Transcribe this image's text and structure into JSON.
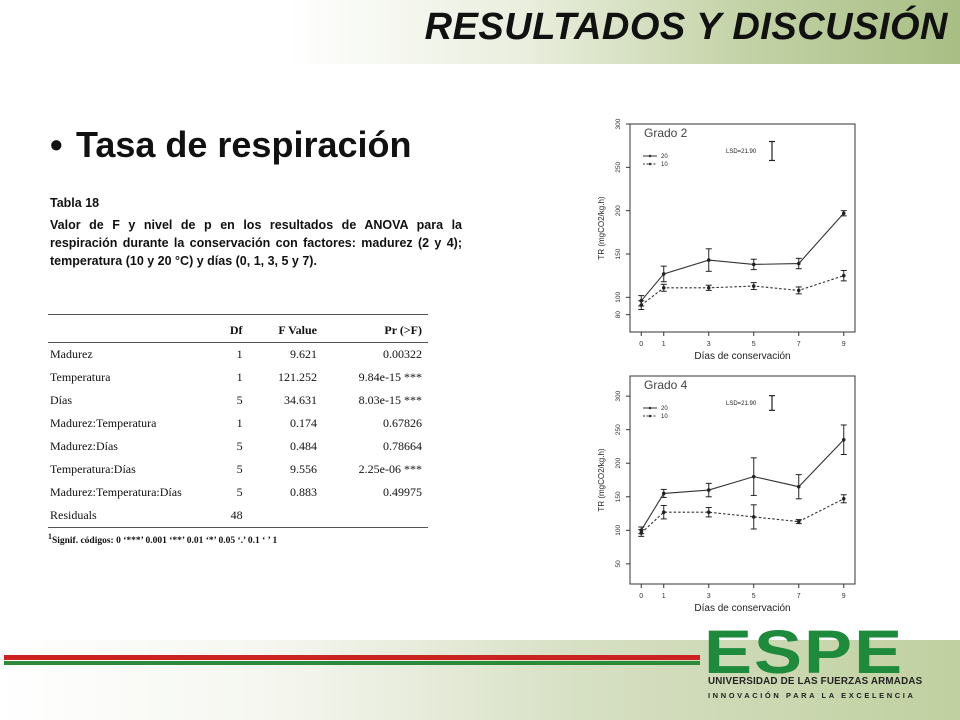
{
  "slide": {
    "title": "RESULTADOS Y DISCUSIÓN",
    "bullet_glyph": "•",
    "heading": "Tasa de respiración"
  },
  "caption": {
    "table_label": "Tabla 18",
    "text": "Valor de F y nivel de p en los resultados de ANOVA para la respiración durante la conservación con factores: madurez (2 y 4); temperatura (10 y 20 °C) y días (0, 1, 3, 5 y 7)."
  },
  "anova_table": {
    "headers": [
      "",
      "Df",
      "F Value",
      "Pr (>F)"
    ],
    "rows": [
      [
        "Madurez",
        "1",
        "9.621",
        "0.00322"
      ],
      [
        "Temperatura",
        "1",
        "121.252",
        "9.84e-15 ***"
      ],
      [
        "Días",
        "5",
        "34.631",
        "8.03e-15 ***"
      ],
      [
        "Madurez:Temperatura",
        "1",
        "0.174",
        "0.67826"
      ],
      [
        "Madurez:Días",
        "5",
        "0.484",
        "0.78664"
      ],
      [
        "Temperatura:Días",
        "5",
        "9.556",
        "2.25e-06 ***"
      ],
      [
        "Madurez:Temperatura:Días",
        "5",
        "0.883",
        "0.49975"
      ],
      [
        "Residuals",
        "48",
        "",
        ""
      ]
    ],
    "footnote_sup": "1",
    "footnote": "Signif. códigos: 0 ‘***’ 0.001 ‘**’ 0.01 ‘*’ 0.05 ‘.’ 0.1 ‘ ’ 1"
  },
  "chart_data": [
    {
      "type": "line",
      "label": "Grado 2",
      "xlabel": "Días de conservación",
      "ylabel": "TR (mgCO2/kg.h)",
      "x": [
        0,
        1,
        3,
        5,
        7,
        9
      ],
      "ylim": [
        60,
        300
      ],
      "yticks": [
        80,
        100,
        150,
        200,
        250,
        300
      ],
      "xticks": [
        0,
        1,
        3,
        5,
        7,
        9
      ],
      "lsd_label": "LSD=21.90",
      "lsd_value": 21.9,
      "legend": [
        "20",
        "10"
      ],
      "series": [
        {
          "name": "20",
          "values": [
            96,
            127,
            143,
            138,
            139,
            197
          ],
          "errors": [
            6,
            9,
            13,
            6,
            6,
            3
          ]
        },
        {
          "name": "10",
          "values": [
            91,
            111,
            111,
            113,
            108,
            125
          ],
          "errors": [
            5,
            4,
            3,
            4,
            4,
            6
          ]
        }
      ]
    },
    {
      "type": "line",
      "label": "Grado 4",
      "xlabel": "Días de conservación",
      "ylabel": "TR (mgCO2/kg.h)",
      "x": [
        0,
        1,
        3,
        5,
        7,
        9
      ],
      "ylim": [
        20,
        330
      ],
      "yticks": [
        50,
        100,
        150,
        200,
        250,
        300
      ],
      "xticks": [
        0,
        1,
        3,
        5,
        7,
        9
      ],
      "lsd_label": "LSD=21.90",
      "lsd_value": 21.9,
      "legend": [
        "20",
        "10"
      ],
      "series": [
        {
          "name": "20",
          "values": [
            100,
            155,
            160,
            180,
            165,
            235
          ],
          "errors": [
            5,
            6,
            10,
            28,
            18,
            22
          ]
        },
        {
          "name": "10",
          "values": [
            96,
            127,
            127,
            120,
            113,
            147
          ],
          "errors": [
            5,
            10,
            7,
            18,
            3,
            6
          ]
        }
      ]
    }
  ],
  "footer": {
    "logo_text": "ESPE",
    "university": "UNIVERSIDAD DE LAS FUERZAS ARMADAS",
    "slogan": "INNOVACIÓN PARA LA EXCELENCIA",
    "logo_color": "#1e8a3c",
    "stripe_red": "#cc2222",
    "stripe_green": "#2c8a3a"
  }
}
